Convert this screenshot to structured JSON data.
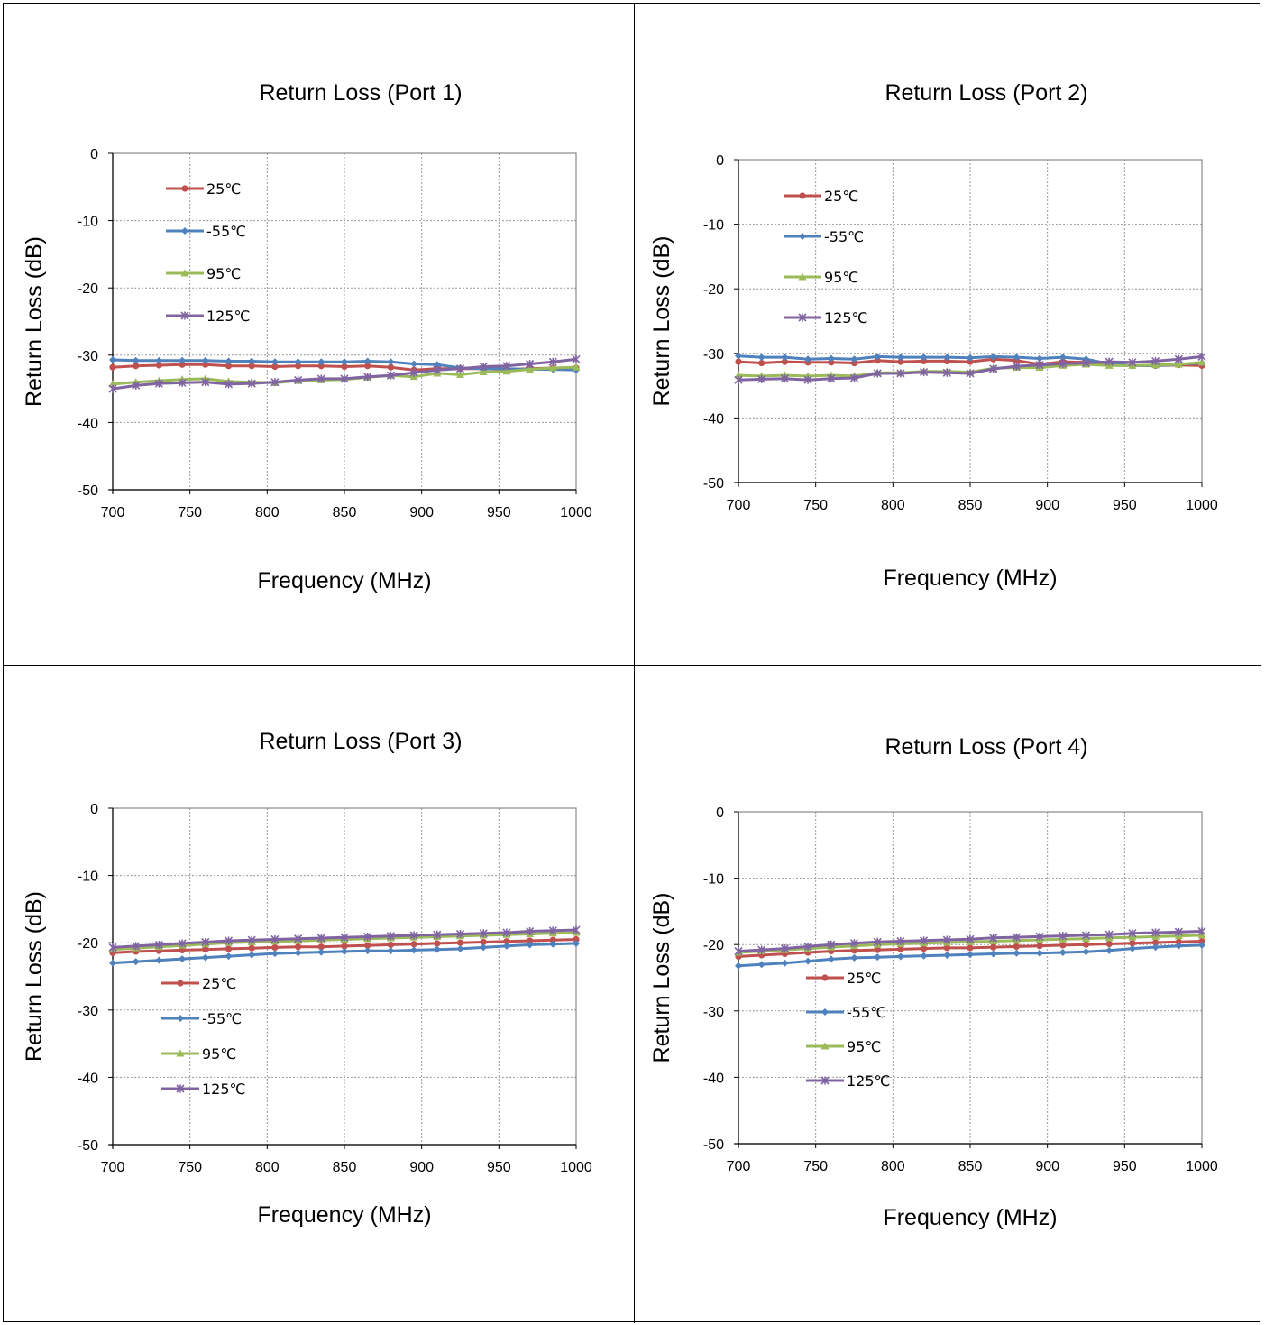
{
  "colors": {
    "25C": "#c0504d",
    "-55C": "#4f81bd",
    "95C": "#9bbb59",
    "125C": "#8064a2",
    "grid": "#999999",
    "frame": "#888888"
  },
  "chart_data": [
    {
      "type": "line",
      "title": "Return Loss (Port 1)",
      "xlabel": "Frequency (MHz)",
      "ylabel": "Return Loss (dB)",
      "xlim": [
        700,
        1000
      ],
      "ylim": [
        -50,
        0
      ],
      "xticks": [
        "700",
        "750",
        "800",
        "850",
        "900",
        "950",
        "1000"
      ],
      "yticks": [
        "0",
        "-10",
        "-20",
        "-30",
        "-40",
        "-50"
      ],
      "grid": true,
      "legend_position": "upper-left",
      "x": [
        700,
        715,
        730,
        745,
        760,
        775,
        790,
        805,
        820,
        835,
        850,
        865,
        880,
        895,
        910,
        925,
        940,
        955,
        970,
        985,
        1000
      ],
      "series": [
        {
          "name": "25℃",
          "color_key": "25C",
          "marker": "circle",
          "values": [
            -31.8,
            -31.6,
            -31.5,
            -31.4,
            -31.4,
            -31.6,
            -31.6,
            -31.7,
            -31.6,
            -31.6,
            -31.7,
            -31.6,
            -31.8,
            -32.2,
            -32.0,
            -32.0,
            -32.0,
            -32.1,
            -32.0,
            -31.9,
            -31.9
          ]
        },
        {
          "name": "-55℃",
          "color_key": "-55C",
          "marker": "diamond",
          "values": [
            -30.7,
            -30.8,
            -30.8,
            -30.8,
            -30.8,
            -30.9,
            -30.9,
            -31.0,
            -31.0,
            -31.0,
            -31.0,
            -30.9,
            -31.0,
            -31.3,
            -31.4,
            -31.9,
            -32.0,
            -32.0,
            -32.1,
            -32.1,
            -32.2
          ]
        },
        {
          "name": "95℃",
          "color_key": "95C",
          "marker": "triangle",
          "values": [
            -34.3,
            -34.0,
            -33.8,
            -33.6,
            -33.5,
            -33.9,
            -34.0,
            -34.1,
            -33.8,
            -33.7,
            -33.6,
            -33.3,
            -33.0,
            -33.2,
            -32.7,
            -32.9,
            -32.5,
            -32.4,
            -32.1,
            -31.9,
            -31.8
          ]
        },
        {
          "name": "125℃",
          "color_key": "125C",
          "marker": "star",
          "values": [
            -35.0,
            -34.5,
            -34.2,
            -34.1,
            -34.0,
            -34.3,
            -34.2,
            -34.0,
            -33.7,
            -33.5,
            -33.5,
            -33.2,
            -33.0,
            -32.6,
            -32.2,
            -32.0,
            -31.7,
            -31.6,
            -31.3,
            -31.0,
            -30.6
          ]
        }
      ]
    },
    {
      "type": "line",
      "title": "Return Loss (Port 2)",
      "xlabel": "Frequency (MHz)",
      "ylabel": "Return Loss (dB)",
      "xlim": [
        700,
        1000
      ],
      "ylim": [
        -50,
        0
      ],
      "xticks": [
        "700",
        "750",
        "800",
        "850",
        "900",
        "950",
        "1000"
      ],
      "yticks": [
        "0",
        "-10",
        "-20",
        "-30",
        "-40",
        "-50"
      ],
      "grid": true,
      "legend_position": "upper-left",
      "x": [
        700,
        715,
        730,
        745,
        760,
        775,
        790,
        805,
        820,
        835,
        850,
        865,
        880,
        895,
        910,
        925,
        940,
        955,
        970,
        985,
        1000
      ],
      "series": [
        {
          "name": "25℃",
          "color_key": "25C",
          "marker": "circle",
          "values": [
            -31.3,
            -31.5,
            -31.3,
            -31.4,
            -31.4,
            -31.5,
            -31.1,
            -31.3,
            -31.2,
            -31.2,
            -31.3,
            -30.9,
            -31.1,
            -31.7,
            -31.3,
            -31.4,
            -31.6,
            -31.9,
            -31.9,
            -31.8,
            -31.9
          ]
        },
        {
          "name": "-55℃",
          "color_key": "-55C",
          "marker": "diamond",
          "values": [
            -30.4,
            -30.6,
            -30.6,
            -30.9,
            -30.8,
            -30.9,
            -30.5,
            -30.6,
            -30.6,
            -30.6,
            -30.7,
            -30.5,
            -30.6,
            -30.8,
            -30.6,
            -30.9,
            -31.6,
            -31.9,
            -31.9,
            -31.7,
            -31.5
          ]
        },
        {
          "name": "95℃",
          "color_key": "95C",
          "marker": "triangle",
          "values": [
            -33.4,
            -33.5,
            -33.4,
            -33.5,
            -33.4,
            -33.5,
            -33.0,
            -33.0,
            -32.8,
            -32.8,
            -32.9,
            -32.3,
            -32.2,
            -32.2,
            -31.9,
            -31.7,
            -31.9,
            -31.9,
            -31.8,
            -31.7,
            -31.4
          ]
        },
        {
          "name": "125℃",
          "color_key": "125C",
          "marker": "star",
          "values": [
            -34.1,
            -34.0,
            -33.9,
            -34.1,
            -33.9,
            -33.8,
            -33.1,
            -33.1,
            -32.9,
            -33.0,
            -33.1,
            -32.4,
            -32.0,
            -31.8,
            -31.6,
            -31.5,
            -31.3,
            -31.4,
            -31.2,
            -30.9,
            -30.5
          ]
        }
      ]
    },
    {
      "type": "line",
      "title": "Return Loss (Port 3)",
      "xlabel": "Frequency (MHz)",
      "ylabel": "Return Loss (dB)",
      "xlim": [
        700,
        1000
      ],
      "ylim": [
        -50,
        0
      ],
      "xticks": [
        "700",
        "750",
        "800",
        "850",
        "900",
        "950",
        "1000"
      ],
      "yticks": [
        "0",
        "-10",
        "-20",
        "-30",
        "-40",
        "-50"
      ],
      "grid": true,
      "legend_position": "lower-left",
      "x": [
        700,
        715,
        730,
        745,
        760,
        775,
        790,
        805,
        820,
        835,
        850,
        865,
        880,
        895,
        910,
        925,
        940,
        955,
        970,
        985,
        1000
      ],
      "series": [
        {
          "name": "25℃",
          "color_key": "25C",
          "marker": "circle",
          "values": [
            -21.5,
            -21.3,
            -21.2,
            -21.1,
            -21.0,
            -20.9,
            -20.8,
            -20.7,
            -20.6,
            -20.6,
            -20.5,
            -20.4,
            -20.3,
            -20.2,
            -20.1,
            -20.0,
            -19.9,
            -19.8,
            -19.7,
            -19.6,
            -19.5
          ]
        },
        {
          "name": "-55℃",
          "color_key": "-55C",
          "marker": "diamond",
          "values": [
            -23.0,
            -22.8,
            -22.6,
            -22.4,
            -22.2,
            -22.0,
            -21.8,
            -21.6,
            -21.5,
            -21.4,
            -21.3,
            -21.2,
            -21.2,
            -21.1,
            -21.0,
            -20.9,
            -20.7,
            -20.5,
            -20.3,
            -20.2,
            -20.1
          ]
        },
        {
          "name": "95℃",
          "color_key": "95C",
          "marker": "triangle",
          "values": [
            -21.0,
            -20.8,
            -20.6,
            -20.4,
            -20.2,
            -20.0,
            -19.9,
            -19.8,
            -19.7,
            -19.6,
            -19.5,
            -19.4,
            -19.3,
            -19.2,
            -19.1,
            -19.0,
            -18.9,
            -18.8,
            -18.7,
            -18.6,
            -18.5
          ]
        },
        {
          "name": "125℃",
          "color_key": "125C",
          "marker": "star",
          "values": [
            -20.7,
            -20.5,
            -20.3,
            -20.1,
            -19.9,
            -19.7,
            -19.6,
            -19.5,
            -19.4,
            -19.3,
            -19.2,
            -19.1,
            -19.0,
            -18.9,
            -18.8,
            -18.7,
            -18.6,
            -18.5,
            -18.3,
            -18.2,
            -18.1
          ]
        }
      ]
    },
    {
      "type": "line",
      "title": "Return Loss (Port 4)",
      "xlabel": "Frequency (MHz)",
      "ylabel": "Return Loss (dB)",
      "xlim": [
        700,
        1000
      ],
      "ylim": [
        -50,
        0
      ],
      "xticks": [
        "700",
        "750",
        "800",
        "850",
        "900",
        "950",
        "1000"
      ],
      "yticks": [
        "0",
        "-10",
        "-20",
        "-30",
        "-40",
        "-50"
      ],
      "grid": true,
      "legend_position": "lower-left",
      "x": [
        700,
        715,
        730,
        745,
        760,
        775,
        790,
        805,
        820,
        835,
        850,
        865,
        880,
        895,
        910,
        925,
        940,
        955,
        970,
        985,
        1000
      ],
      "series": [
        {
          "name": "25℃",
          "color_key": "25C",
          "marker": "circle",
          "values": [
            -21.8,
            -21.6,
            -21.4,
            -21.2,
            -21.0,
            -20.9,
            -20.8,
            -20.7,
            -20.6,
            -20.5,
            -20.5,
            -20.4,
            -20.3,
            -20.2,
            -20.1,
            -20.0,
            -19.9,
            -19.8,
            -19.7,
            -19.6,
            -19.5
          ]
        },
        {
          "name": "-55℃",
          "color_key": "-55C",
          "marker": "diamond",
          "values": [
            -23.2,
            -23.0,
            -22.8,
            -22.5,
            -22.2,
            -22.0,
            -21.9,
            -21.8,
            -21.7,
            -21.6,
            -21.5,
            -21.4,
            -21.3,
            -21.3,
            -21.2,
            -21.1,
            -20.9,
            -20.6,
            -20.4,
            -20.2,
            -20.1
          ]
        },
        {
          "name": "95℃",
          "color_key": "95C",
          "marker": "triangle",
          "values": [
            -21.2,
            -21.0,
            -20.8,
            -20.6,
            -20.4,
            -20.2,
            -20.0,
            -19.9,
            -19.8,
            -19.7,
            -19.6,
            -19.5,
            -19.4,
            -19.3,
            -19.2,
            -19.1,
            -19.0,
            -18.9,
            -18.8,
            -18.7,
            -18.6
          ]
        },
        {
          "name": "125℃",
          "color_key": "125C",
          "marker": "star",
          "values": [
            -21.0,
            -20.8,
            -20.6,
            -20.3,
            -20.0,
            -19.8,
            -19.6,
            -19.5,
            -19.4,
            -19.3,
            -19.2,
            -19.0,
            -18.9,
            -18.8,
            -18.7,
            -18.6,
            -18.5,
            -18.3,
            -18.2,
            -18.1,
            -18.0
          ]
        }
      ]
    }
  ]
}
